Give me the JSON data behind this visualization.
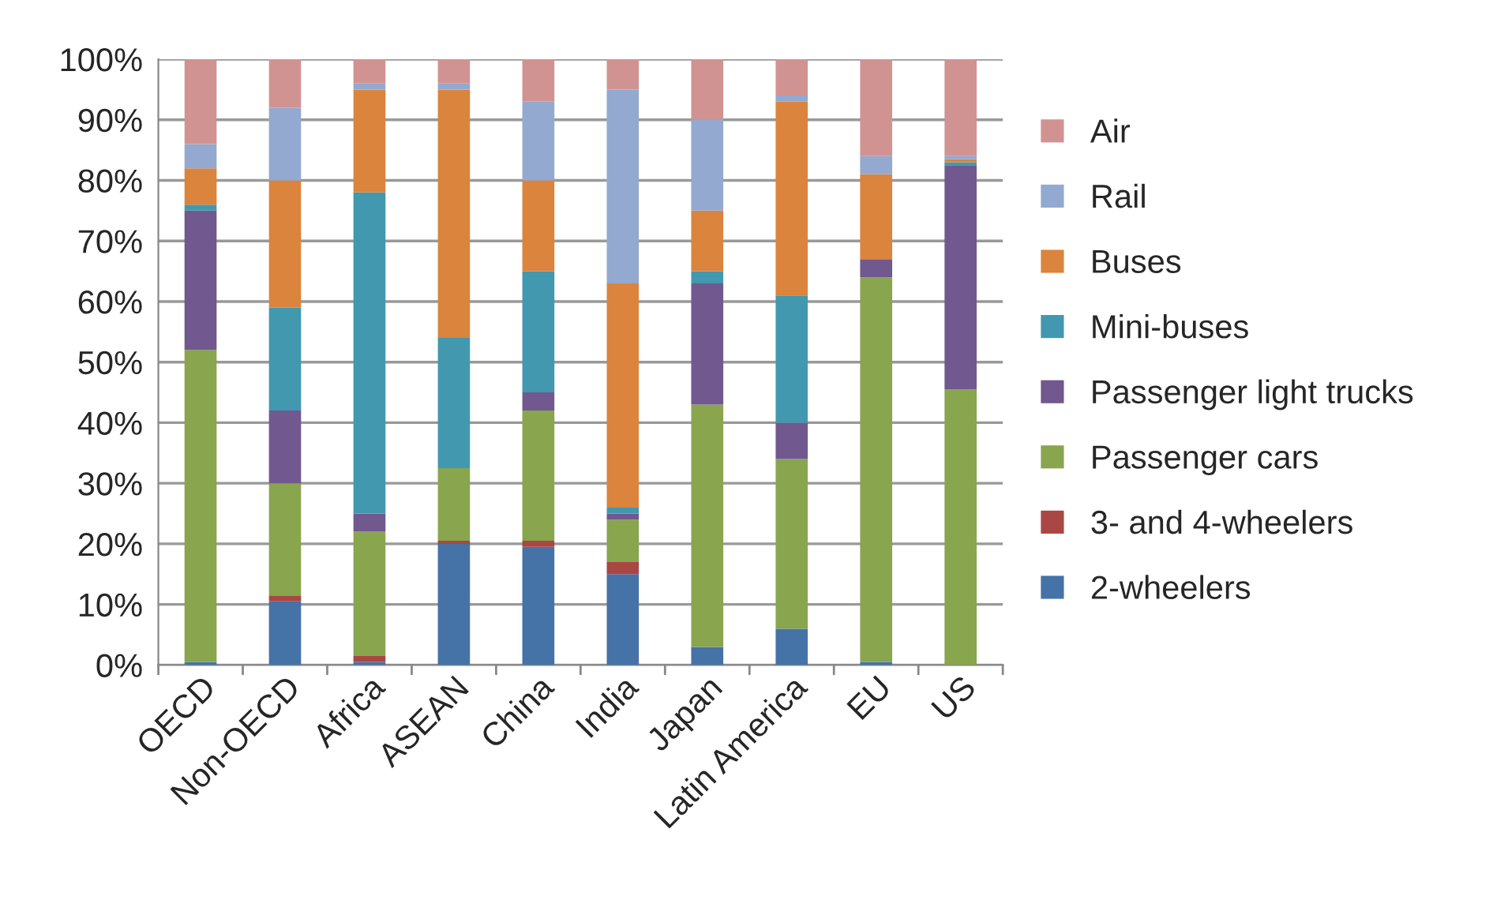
{
  "chart_data": {
    "type": "bar",
    "stacked": true,
    "categories": [
      "OECD",
      "Non-OECD",
      "Africa",
      "ASEAN",
      "China",
      "India",
      "Japan",
      "Latin America",
      "EU",
      "US"
    ],
    "series": [
      {
        "name": "2-wheelers",
        "color": "#4572a7",
        "values": [
          0.5,
          10.5,
          0.5,
          20,
          19.5,
          15,
          3,
          6,
          0.5,
          0
        ]
      },
      {
        "name": "3- and 4-wheelers",
        "color": "#aa4643",
        "values": [
          0,
          1,
          1,
          0.5,
          1,
          2,
          0,
          0,
          0,
          0
        ]
      },
      {
        "name": "Passenger cars",
        "color": "#89a54e",
        "values": [
          51.5,
          18.5,
          20.5,
          12,
          21.5,
          7,
          40,
          28,
          63.5,
          45.5
        ]
      },
      {
        "name": "Passenger light trucks",
        "color": "#71588f",
        "values": [
          23,
          12,
          3,
          0,
          3,
          1,
          20,
          6,
          3,
          37
        ]
      },
      {
        "name": "Mini-buses",
        "color": "#4198af",
        "values": [
          1,
          17,
          53,
          21.5,
          20,
          1,
          2,
          21,
          0,
          0.5
        ]
      },
      {
        "name": "Buses",
        "color": "#db843d",
        "values": [
          6,
          21,
          17,
          41,
          15,
          37,
          10,
          32,
          14,
          0.5
        ]
      },
      {
        "name": "Rail",
        "color": "#93a9cf",
        "values": [
          4,
          12,
          1,
          1,
          13,
          32,
          15,
          1,
          3,
          0.5
        ]
      },
      {
        "name": "Air",
        "color": "#d19392",
        "values": [
          14,
          8,
          4,
          4,
          7,
          5,
          10,
          6,
          16,
          16
        ]
      }
    ],
    "ylim": [
      0,
      100
    ],
    "yticks": [
      {
        "value": 0,
        "label": "0%"
      },
      {
        "value": 10,
        "label": "10%"
      },
      {
        "value": 20,
        "label": "20%"
      },
      {
        "value": 30,
        "label": "30%"
      },
      {
        "value": 40,
        "label": "40%"
      },
      {
        "value": 50,
        "label": "50%"
      },
      {
        "value": 60,
        "label": "60%"
      },
      {
        "value": 70,
        "label": "70%"
      },
      {
        "value": 80,
        "label": "80%"
      },
      {
        "value": 90,
        "label": "90%"
      },
      {
        "value": 100,
        "label": "100%"
      }
    ],
    "grid": "y",
    "legend": "right"
  }
}
